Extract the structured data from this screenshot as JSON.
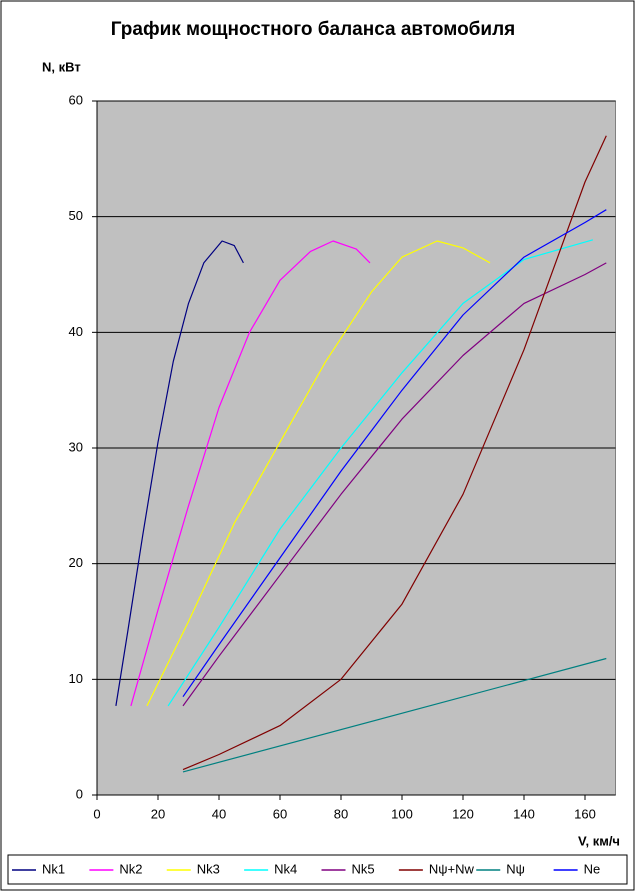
{
  "chart_data": {
    "type": "line",
    "title": "График мощностного баланса автомобиля",
    "y_label": "N, кВт",
    "x_label": "V, км/ч",
    "xlim": [
      0,
      170
    ],
    "xticks": [
      0,
      20,
      40,
      60,
      80,
      100,
      120,
      140,
      160
    ],
    "ylim": [
      0,
      60
    ],
    "yticks": [
      0,
      10,
      20,
      30,
      40,
      50,
      60
    ],
    "grid": true,
    "legend": "bottom",
    "plot_background": "#c0c0c0",
    "series": [
      {
        "name": "Nk1",
        "color": "#000080",
        "x": [
          6.2,
          10,
          15,
          20,
          25,
          30,
          35,
          41,
          45,
          48
        ],
        "values": [
          7.7,
          14,
          22.5,
          30.5,
          37.5,
          42.5,
          46,
          47.9,
          47.5,
          46
        ]
      },
      {
        "name": "Nk2",
        "color": "#ff00ff",
        "x": [
          11.1,
          20,
          30,
          40,
          50,
          60,
          70,
          77.4,
          85,
          89.5
        ],
        "values": [
          7.7,
          16,
          25,
          33.5,
          40,
          44.5,
          47,
          47.9,
          47.2,
          46
        ]
      },
      {
        "name": "Nk3",
        "color": "#ffff00",
        "x": [
          16.4,
          30,
          45,
          60,
          75,
          90,
          100,
          111.5,
          120,
          128.9
        ],
        "values": [
          7.7,
          15,
          23.5,
          30.5,
          37.5,
          43.5,
          46.5,
          47.9,
          47.3,
          46
        ]
      },
      {
        "name": "Nk4",
        "color": "#00ffff",
        "x": [
          23.3,
          40,
          60,
          80,
          100,
          120,
          140,
          162.6
        ],
        "values": [
          7.7,
          14.5,
          23,
          30,
          36.5,
          42.5,
          46.3,
          48
        ]
      },
      {
        "name": "Nk5",
        "color": "#800080",
        "x": [
          28.2,
          40,
          60,
          80,
          100,
          120,
          140,
          160,
          167
        ],
        "values": [
          7.7,
          12,
          19,
          26,
          32.5,
          38,
          42.5,
          45,
          46
        ]
      },
      {
        "name": "Nψ+Nw",
        "color": "#800000",
        "x": [
          28.2,
          40,
          60,
          80,
          100,
          120,
          140,
          160,
          167
        ],
        "values": [
          2.2,
          3.5,
          6,
          10,
          16.5,
          26,
          38.5,
          53,
          57
        ]
      },
      {
        "name": "Nψ",
        "color": "#008080",
        "x": [
          28.2,
          167
        ],
        "values": [
          2,
          11.8
        ]
      },
      {
        "name": "Ne",
        "color": "#0000ff",
        "x": [
          28.2,
          40,
          60,
          80,
          100,
          120,
          140,
          160,
          167
        ],
        "values": [
          8.5,
          13,
          20.5,
          28,
          35,
          41.5,
          46.5,
          49.5,
          50.6
        ]
      }
    ]
  }
}
